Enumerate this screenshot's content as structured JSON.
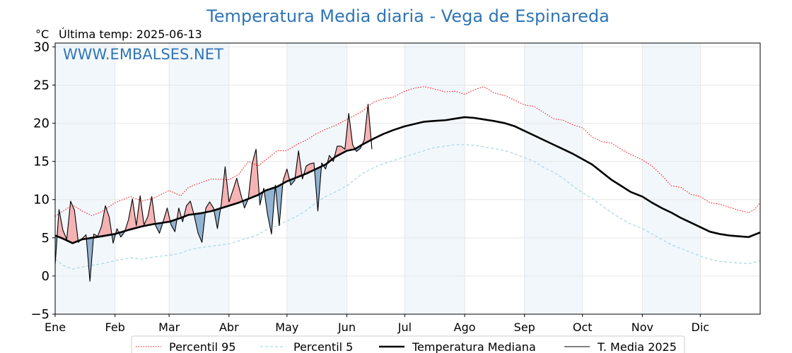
{
  "title": "Temperatura Media diaria - Vega de Espinareda",
  "unit_label": "°C",
  "last_temp_label": "Última temp: 2025-06-13",
  "watermark": "WWW.EMBALSES.NET",
  "colors": {
    "title": "#2e75b6",
    "p95": "#ff0000",
    "p5": "#add8e6",
    "median": "#000000",
    "t2025": "#000000",
    "above_fill": "#f4a6a6",
    "below_fill": "#7fa6c9",
    "band": "#dbe9f6"
  },
  "chart_data": {
    "type": "line",
    "title": "Temperatura Media diaria - Vega de Espinareda",
    "ylabel": "°C",
    "ylim": [
      -5,
      30.5
    ],
    "xlim": [
      1,
      366
    ],
    "yticks": [
      -5,
      0,
      5,
      10,
      15,
      20,
      25,
      30
    ],
    "ytick_labels": [
      "−5",
      "0",
      "5",
      "10",
      "15",
      "20",
      "25",
      "30"
    ],
    "months": [
      "Ene",
      "Feb",
      "Mar",
      "Abr",
      "May",
      "Jun",
      "Jul",
      "Ago",
      "Sep",
      "Oct",
      "Nov",
      "Dic"
    ],
    "month_start_days": [
      1,
      32,
      60,
      91,
      121,
      152,
      182,
      213,
      244,
      274,
      305,
      335
    ],
    "grid": true,
    "legend_position": "bottom",
    "series": [
      {
        "name": "Percentil 95",
        "style": "dotted",
        "x": [
          1,
          5,
          10,
          15,
          20,
          25,
          32,
          40,
          46,
          52,
          60,
          66,
          70,
          76,
          82,
          91,
          96,
          101,
          106,
          110,
          116,
          121,
          126,
          131,
          136,
          141,
          146,
          152,
          156,
          160,
          166,
          171,
          176,
          182,
          187,
          192,
          197,
          203,
          208,
          213,
          218,
          223,
          228,
          234,
          239,
          244,
          249,
          254,
          259,
          264,
          269,
          274,
          279,
          284,
          289,
          294,
          299,
          305,
          310,
          315,
          320,
          325,
          330,
          335,
          340,
          345,
          350,
          355,
          360,
          363,
          366
        ],
        "values": [
          7.8,
          8.5,
          9.3,
          8.5,
          7.9,
          8.4,
          9.6,
          10.4,
          9.8,
          10.2,
          11.2,
          10.5,
          11.6,
          12.2,
          12.7,
          12.6,
          13.3,
          15.0,
          14.4,
          15.2,
          16.4,
          16.4,
          17.2,
          17.8,
          18.6,
          19.2,
          19.7,
          20.5,
          21.0,
          21.6,
          22.8,
          23.2,
          23.4,
          24.2,
          24.6,
          24.8,
          24.5,
          24.1,
          24.2,
          23.8,
          24.4,
          24.8,
          24.0,
          23.6,
          23.0,
          22.4,
          22.2,
          21.4,
          20.6,
          20.4,
          19.8,
          19.4,
          18.2,
          17.6,
          17.4,
          16.6,
          15.9,
          15.2,
          14.4,
          13.2,
          11.8,
          11.6,
          10.7,
          10.4,
          9.6,
          9.4,
          9.0,
          8.6,
          8.3,
          8.7,
          9.6
        ]
      },
      {
        "name": "Percentil 5",
        "style": "dashed",
        "x": [
          1,
          5,
          10,
          15,
          20,
          25,
          32,
          40,
          46,
          52,
          60,
          66,
          70,
          76,
          82,
          91,
          96,
          101,
          106,
          110,
          116,
          121,
          126,
          131,
          136,
          141,
          146,
          152,
          156,
          160,
          166,
          171,
          176,
          182,
          187,
          192,
          197,
          203,
          208,
          213,
          218,
          223,
          228,
          234,
          239,
          244,
          249,
          254,
          259,
          264,
          269,
          274,
          279,
          284,
          289,
          294,
          299,
          305,
          310,
          315,
          320,
          325,
          330,
          335,
          340,
          345,
          350,
          355,
          360,
          363,
          366
        ],
        "values": [
          2.2,
          1.4,
          0.9,
          1.2,
          1.4,
          1.6,
          2.0,
          2.4,
          2.2,
          2.5,
          2.7,
          3.0,
          3.4,
          3.7,
          3.9,
          4.2,
          4.6,
          5.0,
          5.4,
          6.0,
          6.6,
          7.2,
          7.8,
          8.6,
          9.6,
          10.4,
          11.0,
          11.8,
          12.6,
          13.4,
          14.2,
          14.7,
          15.1,
          15.6,
          16.0,
          16.4,
          16.8,
          17.0,
          17.2,
          17.2,
          17.1,
          16.9,
          16.7,
          16.4,
          16.0,
          15.5,
          15.0,
          14.2,
          13.6,
          12.8,
          11.8,
          10.9,
          10.2,
          9.2,
          8.3,
          7.5,
          6.8,
          6.2,
          5.5,
          4.8,
          4.1,
          3.6,
          3.1,
          2.6,
          2.2,
          1.9,
          1.8,
          1.7,
          1.6,
          1.8,
          2.0
        ]
      },
      {
        "name": "Temperatura Mediana",
        "style": "solid-thick",
        "x": [
          1,
          5,
          10,
          15,
          20,
          25,
          32,
          40,
          46,
          52,
          60,
          66,
          70,
          76,
          82,
          91,
          96,
          101,
          106,
          110,
          116,
          121,
          126,
          131,
          136,
          141,
          146,
          152,
          156,
          160,
          166,
          171,
          176,
          182,
          187,
          192,
          197,
          203,
          208,
          213,
          218,
          223,
          228,
          234,
          239,
          244,
          249,
          254,
          259,
          264,
          269,
          274,
          279,
          284,
          289,
          294,
          299,
          305,
          310,
          315,
          320,
          325,
          330,
          335,
          340,
          345,
          350,
          355,
          360,
          363,
          366
        ],
        "values": [
          5.3,
          4.9,
          4.3,
          4.8,
          5.0,
          5.2,
          5.5,
          6.1,
          6.5,
          6.8,
          7.1,
          7.6,
          8.0,
          8.2,
          8.5,
          9.2,
          9.6,
          10.1,
          10.6,
          11.2,
          11.7,
          12.4,
          12.9,
          13.4,
          14.0,
          14.6,
          15.6,
          16.4,
          16.6,
          17.2,
          18.0,
          18.6,
          19.1,
          19.6,
          19.9,
          20.2,
          20.3,
          20.4,
          20.6,
          20.8,
          20.7,
          20.5,
          20.3,
          20.0,
          19.6,
          19.0,
          18.4,
          17.8,
          17.2,
          16.6,
          16.0,
          15.3,
          14.6,
          13.6,
          12.6,
          11.8,
          11.0,
          10.4,
          9.6,
          8.9,
          8.3,
          7.6,
          7.0,
          6.4,
          5.8,
          5.5,
          5.3,
          5.2,
          5.1,
          5.4,
          5.7
        ]
      },
      {
        "name": "T. Media 2025",
        "style": "solid-thin",
        "x": [
          1,
          3,
          5,
          7,
          9,
          11,
          13,
          15,
          17,
          19,
          21,
          23,
          25,
          27,
          29,
          31,
          33,
          35,
          37,
          39,
          41,
          43,
          45,
          47,
          49,
          51,
          53,
          55,
          57,
          59,
          61,
          63,
          65,
          67,
          69,
          71,
          73,
          75,
          77,
          79,
          81,
          83,
          85,
          87,
          89,
          91,
          93,
          95,
          97,
          99,
          101,
          103,
          105,
          107,
          109,
          111,
          113,
          115,
          117,
          119,
          121,
          123,
          125,
          127,
          129,
          131,
          133,
          135,
          137,
          139,
          141,
          143,
          145,
          147,
          149,
          151,
          153,
          155,
          157,
          159,
          161,
          163,
          165
        ],
        "values": [
          1.5,
          8.7,
          6.0,
          4.8,
          9.8,
          8.6,
          4.4,
          4.9,
          5.4,
          -0.7,
          5.5,
          5.2,
          6.5,
          9.2,
          7.7,
          4.3,
          6.2,
          5.1,
          5.8,
          7.4,
          10.1,
          6.6,
          10.5,
          6.7,
          7.8,
          10.4,
          6.6,
          5.6,
          7.2,
          8.9,
          6.7,
          5.8,
          8.9,
          7.1,
          9.2,
          9.8,
          7.9,
          5.6,
          4.4,
          8.9,
          9.7,
          8.9,
          6.2,
          9.4,
          14.3,
          9.7,
          11.2,
          12.8,
          10.8,
          8.9,
          10.1,
          14.7,
          16.6,
          9.3,
          11.5,
          8.0,
          5.5,
          11.9,
          6.6,
          12.5,
          14.0,
          11.9,
          12.5,
          16.4,
          12.7,
          14.4,
          14.7,
          14.8,
          8.5,
          14.8,
          14.0,
          15.8,
          15.0,
          17.0,
          17.0,
          16.6,
          21.3,
          17.2,
          16.3,
          16.7,
          17.8,
          22.5,
          16.6
        ]
      }
    ]
  },
  "legend": {
    "items": [
      {
        "label": "Percentil 95",
        "style": "dotted",
        "color": "#ff0000"
      },
      {
        "label": "Percentil 5",
        "style": "dashed",
        "color": "#add8e6"
      },
      {
        "label": "Temperatura Mediana",
        "style": "thick",
        "color": "#000000"
      },
      {
        "label": "T. Media 2025",
        "style": "thin",
        "color": "#000000"
      }
    ]
  }
}
